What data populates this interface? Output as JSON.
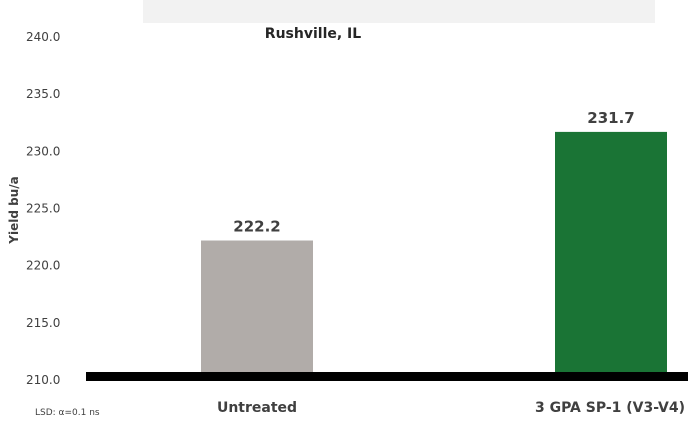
{
  "chart_data": {
    "type": "bar",
    "title": "Rushville, IL",
    "ylabel": "Yield bu/a",
    "xlabel": "",
    "ylim": [
      210.0,
      240.0
    ],
    "y_ticks": [
      "240.0",
      "235.0",
      "230.0",
      "225.0",
      "220.0",
      "215.0",
      "210.0"
    ],
    "categories": [
      "Untreated",
      "3 GPA SP-1 (V3-V4)"
    ],
    "values": [
      222.2,
      231.7
    ],
    "value_labels": [
      "222.2",
      "231.7"
    ],
    "colors": [
      "#b1aca9",
      "#1a7435"
    ],
    "grid": false,
    "legend": "none"
  },
  "footnote": "LSD: α=0.1 ns"
}
